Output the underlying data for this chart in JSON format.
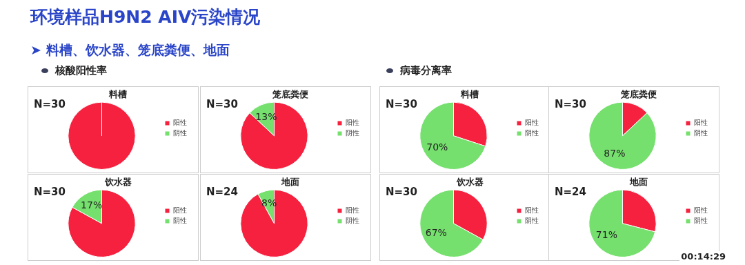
{
  "chart_data": [
    {
      "type": "other",
      "title": "环境样品H9N2 AIV污染情况",
      "subtitle": "➤ 料槽、饮水器、笼底粪便、地面",
      "annotations": [
        "核酸阳性率",
        "病毒分离率",
        "00:14:29"
      ]
    },
    {
      "type": "pie",
      "title": "料槽",
      "annotations": [
        "N=30"
      ],
      "categories": [
        "阳性",
        "阴性"
      ],
      "values": [
        100,
        0
      ],
      "colors": [
        "#f5213f",
        "#76e06e"
      ],
      "value_labels": [
        null,
        null
      ],
      "legend": "right"
    },
    {
      "type": "pie",
      "title": "笼底粪便",
      "annotations": [
        "N=30"
      ],
      "categories": [
        "阳性",
        "阴性"
      ],
      "values": [
        87,
        13
      ],
      "colors": [
        "#f5213f",
        "#76e06e"
      ],
      "value_labels": [
        null,
        "13%"
      ],
      "legend": "right"
    },
    {
      "type": "pie",
      "title": "饮水器",
      "annotations": [
        "N=30"
      ],
      "categories": [
        "阳性",
        "阴性"
      ],
      "values": [
        83,
        17
      ],
      "colors": [
        "#f5213f",
        "#76e06e"
      ],
      "value_labels": [
        null,
        "17%"
      ],
      "legend": "right"
    },
    {
      "type": "pie",
      "title": "地面",
      "annotations": [
        "N=24"
      ],
      "categories": [
        "阳性",
        "阴性"
      ],
      "values": [
        92,
        8
      ],
      "colors": [
        "#f5213f",
        "#76e06e"
      ],
      "value_labels": [
        null,
        "8%"
      ],
      "legend": "right"
    },
    {
      "type": "pie",
      "title": "料槽",
      "annotations": [
        "N=30"
      ],
      "categories": [
        "阳性",
        "阴性"
      ],
      "values": [
        30,
        70
      ],
      "colors": [
        "#f5213f",
        "#76e06e"
      ],
      "value_labels": [
        null,
        "70%"
      ],
      "legend": "right"
    },
    {
      "type": "pie",
      "title": "笼底粪便",
      "annotations": [
        "N=30"
      ],
      "categories": [
        "阳性",
        "阴性"
      ],
      "values": [
        13,
        87
      ],
      "colors": [
        "#f5213f",
        "#76e06e"
      ],
      "value_labels": [
        null,
        "87%"
      ],
      "legend": "right"
    },
    {
      "type": "pie",
      "title": "饮水器",
      "annotations": [
        "N=30"
      ],
      "categories": [
        "阳性",
        "阴性"
      ],
      "values": [
        33,
        67
      ],
      "colors": [
        "#f5213f",
        "#76e06e"
      ],
      "value_labels": [
        null,
        "67%"
      ],
      "legend": "right"
    },
    {
      "type": "pie",
      "title": "地面",
      "annotations": [
        "N=24"
      ],
      "categories": [
        "阳性",
        "阴性"
      ],
      "values": [
        29,
        71
      ],
      "colors": [
        "#f5213f",
        "#76e06e"
      ],
      "value_labels": [
        null,
        "71%"
      ],
      "legend": "right"
    }
  ]
}
